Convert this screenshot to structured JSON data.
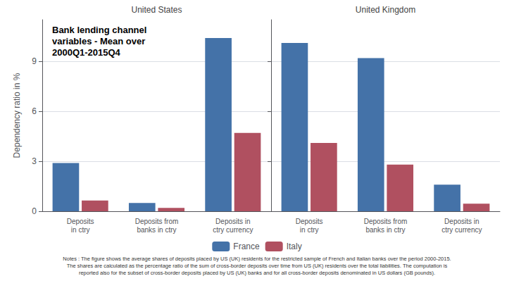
{
  "chart_data": [
    {
      "type": "bar",
      "title": "United States",
      "annotations": [
        "Bank lending channel\nvariables - Mean over\n2000Q1-2015Q4",
        "Notes : The figure shows the average shares of deposits placed by US (UK) residents for the restricted sample of French and Italian banks over the period 2000-2015.\nThe shares are calculated as the percentage ratio of the sum of cross-border deposits over time from US (UK) residents over the total liabilities. The computation is\nreported also for the subset of cross-border deposits placed by US (UK) banks and for all cross-border deposits denominated in US dollars (GB pounds)."
      ],
      "categories": [
        "Deposits\nin ctry",
        "Deposits from\nbanks in ctry",
        "Deposits in\nctry currency"
      ],
      "series": [
        {
          "name": "France",
          "color": "#4472a8",
          "values": [
            2.9,
            0.5,
            10.4
          ]
        },
        {
          "name": "Italy",
          "color": "#b05060",
          "values": [
            0.65,
            0.2,
            4.7
          ]
        }
      ],
      "ylabel": "Dependency ratio in %",
      "ylim": [
        0,
        11.5
      ],
      "yticks": [
        0,
        3,
        6,
        9
      ],
      "grid": true,
      "legend": "bottom"
    },
    {
      "type": "bar",
      "title": "United Kingdom",
      "categories": [
        "Deposits\nin ctry",
        "Deposits from\nbanks in ctry",
        "Deposits in\nctry currency"
      ],
      "series": [
        {
          "name": "France",
          "color": "#4472a8",
          "values": [
            10.1,
            9.2,
            1.6
          ]
        },
        {
          "name": "Italy",
          "color": "#b05060",
          "values": [
            4.1,
            2.8,
            0.45
          ]
        }
      ],
      "ylim": [
        0,
        11.5
      ],
      "yticks": [
        0,
        3,
        6,
        9
      ],
      "grid": true,
      "tick_labels": "x",
      "legend": "bottom"
    }
  ]
}
